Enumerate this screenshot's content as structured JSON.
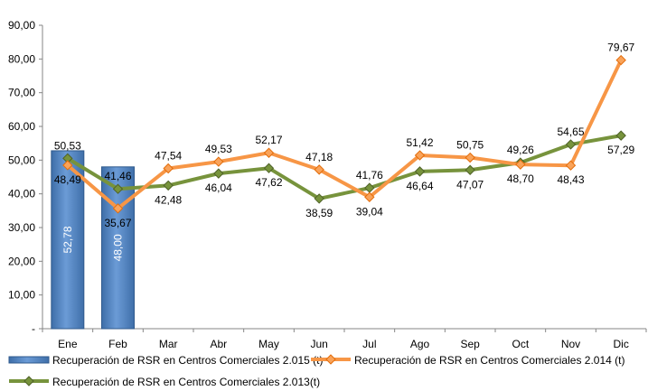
{
  "chart_data": {
    "type": "bar",
    "categories": [
      "Ene",
      "Feb",
      "Mar",
      "Abr",
      "May",
      "Jun",
      "Jul",
      "Ago",
      "Sep",
      "Oct",
      "Nov",
      "Dic"
    ],
    "y_ticks": [
      "-",
      "10,00",
      "20,00",
      "30,00",
      "40,00",
      "50,00",
      "60,00",
      "70,00",
      "80,00",
      "90,00"
    ],
    "ylim": [
      0,
      90
    ],
    "grid": false,
    "legend_position": "bottom",
    "series": [
      {
        "name": "Recuperación de RSR en Centros Comerciales 2.015 (t)",
        "type": "bar",
        "color": "#4f81bd",
        "values": [
          52.78,
          48.0,
          null,
          null,
          null,
          null,
          null,
          null,
          null,
          null,
          null,
          null
        ],
        "labels": [
          "52,78",
          "48,00",
          "",
          "",
          "",
          "",
          "",
          "",
          "",
          "",
          "",
          ""
        ]
      },
      {
        "name": "Recuperación de RSR en Centros Comerciales 2.014 (t)",
        "type": "line",
        "color": "#f79646",
        "values": [
          48.49,
          35.67,
          47.54,
          49.53,
          52.17,
          47.18,
          39.04,
          51.42,
          50.75,
          48.7,
          48.43,
          79.67
        ],
        "labels": [
          "48,49",
          "35,67",
          "47,54",
          "49,53",
          "52,17",
          "47,18",
          "39,04",
          "51,42",
          "50,75",
          "48,70",
          "48,43",
          "79,67"
        ]
      },
      {
        "name": "Recuperación de RSR en Centros Comerciales 2.013(t)",
        "type": "line",
        "color": "#77933c",
        "values": [
          50.53,
          41.46,
          42.48,
          46.04,
          47.62,
          38.59,
          41.76,
          46.64,
          47.07,
          49.26,
          54.65,
          57.29
        ],
        "labels": [
          "50,53",
          "41,46",
          "42,48",
          "46,04",
          "47,62",
          "38,59",
          "41,76",
          "46,64",
          "47,07",
          "49,26",
          "54,65",
          "57,29"
        ]
      }
    ]
  }
}
